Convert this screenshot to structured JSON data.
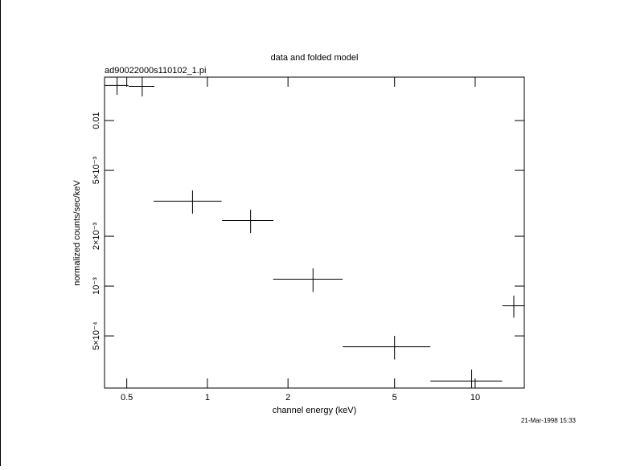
{
  "chart_data": {
    "type": "scatter",
    "title": "data and folded model",
    "subtitle": "ad90022000s110102_1.pi",
    "xlabel": "channel energy (keV)",
    "ylabel": "normalized counts/sec/keV",
    "timestamp": "21-Mar-1998 15:33",
    "xscale": "log",
    "yscale": "log",
    "color": "#000000",
    "xlim": [
      0.413,
      15.25
    ],
    "ylim": [
      0.000242,
      0.0183
    ],
    "xticks": [
      0.5,
      1,
      2,
      5,
      10
    ],
    "yticks": [
      {
        "value": 0.0005,
        "label": "5×10⁻⁴"
      },
      {
        "value": 0.001,
        "label": "10⁻³"
      },
      {
        "value": 0.002,
        "label": "2×10⁻³"
      },
      {
        "value": 0.005,
        "label": "5×10⁻³"
      },
      0.01
    ],
    "x": [
      0.46,
      0.571,
      0.88,
      1.45,
      2.48,
      5.0,
      9.7,
      13.94
    ],
    "xerr": [
      0.047,
      0.063,
      0.25,
      0.315,
      0.72,
      1.8,
      2.9,
      1.3
    ],
    "values": [
      0.0163,
      0.0161,
      0.00326,
      0.00249,
      0.0011,
      0.00043,
      0.000267,
      0.00076
    ],
    "yerr": [
      0.002,
      0.0021,
      0.00052,
      0.0004,
      0.00018,
      7e-05,
      4.6e-05,
      0.000115
    ]
  }
}
